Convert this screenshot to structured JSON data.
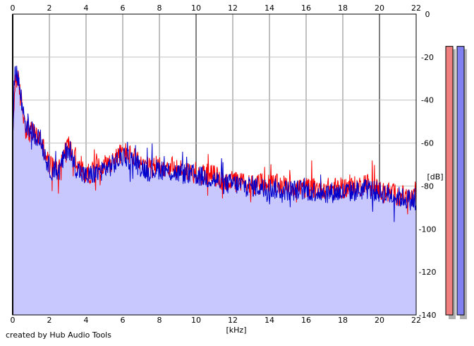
{
  "credit": "created by Hub Audio Tools",
  "colors": {
    "background": "#ffffff",
    "plot_bg": "#ffffff",
    "fill": "#c8c8ff",
    "grid_minor": "#c0c0c0",
    "grid_major": "#808080",
    "axis": "#000000",
    "left_channel": "#ff0000",
    "right_channel": "#0000cc",
    "meter_left": "#f08080",
    "meter_right": "#8080f0",
    "meter_shadow": "#b0b0b0"
  },
  "meters": [
    {
      "name": "left",
      "level_db": -15
    },
    {
      "name": "right",
      "level_db": -15
    }
  ],
  "chart_data": {
    "type": "line",
    "title": "",
    "xlabel": "[kHz]",
    "ylabel": "[dB]",
    "xlim": [
      0,
      22
    ],
    "ylim": [
      -140,
      0
    ],
    "x_ticks": [
      "0",
      "2",
      "4",
      "6",
      "8",
      "10",
      "12",
      "14",
      "16",
      "18",
      "20",
      "22"
    ],
    "y_ticks": [
      "0",
      "-20",
      "-40",
      "-60",
      "-80",
      "-100",
      "-120",
      "-140"
    ],
    "grid": true,
    "filled_area": true,
    "series": [
      {
        "color": "#ff0000",
        "x": [
          0,
          0.1,
          0.2,
          0.3,
          0.5,
          0.7,
          1.0,
          1.5,
          2.0,
          2.5,
          3.0,
          3.5,
          4.0,
          5.0,
          5.5,
          6.0,
          6.5,
          7.0,
          7.5,
          8.0,
          9.0,
          10.0,
          11.0,
          11.5,
          12.0,
          13.0,
          14.0,
          15.0,
          16.0,
          17.0,
          18.0,
          19.0,
          19.2,
          20.0,
          21.0,
          22.0
        ],
        "y": [
          -60,
          -35,
          -28,
          -32,
          -42,
          -52,
          -55,
          -58,
          -70,
          -72,
          -60,
          -70,
          -75,
          -70,
          -68,
          -64,
          -66,
          -70,
          -72,
          -70,
          -72,
          -74,
          -75,
          -78,
          -78,
          -79,
          -79,
          -80,
          -81,
          -81,
          -81,
          -80,
          -78,
          -82,
          -84,
          -86
        ]
      },
      {
        "color": "#0000cc",
        "x": [
          0,
          0.1,
          0.2,
          0.3,
          0.5,
          0.7,
          1.0,
          1.5,
          2.0,
          2.5,
          3.0,
          3.5,
          4.0,
          5.0,
          5.5,
          6.0,
          6.5,
          7.0,
          7.5,
          8.0,
          9.0,
          10.0,
          11.0,
          11.5,
          12.0,
          13.0,
          14.0,
          15.0,
          16.0,
          17.0,
          18.0,
          19.0,
          19.2,
          20.0,
          21.0,
          22.0
        ],
        "y": [
          -55,
          -30,
          -25,
          -30,
          -42,
          -50,
          -54,
          -58,
          -72,
          -74,
          -62,
          -72,
          -76,
          -72,
          -70,
          -66,
          -68,
          -71,
          -73,
          -72,
          -74,
          -75,
          -77,
          -79,
          -79,
          -80,
          -81,
          -82,
          -82,
          -83,
          -83,
          -82,
          -81,
          -83,
          -85,
          -87
        ]
      }
    ]
  }
}
